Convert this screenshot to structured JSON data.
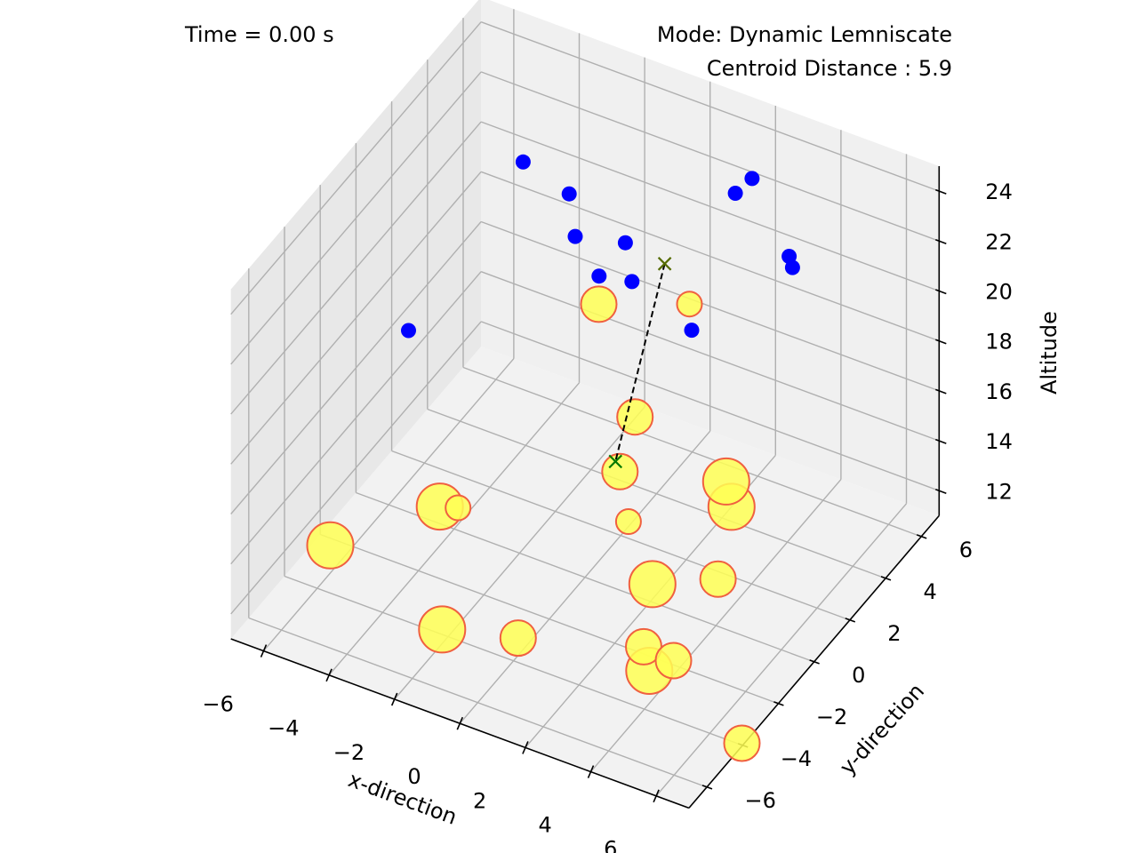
{
  "chart_data": {
    "type": "scatter3d",
    "time_label": "Time = 0.00 s",
    "mode_label": "Mode: Dynamic Lemniscate",
    "centroid_label": "Centroid Distance : 5.9",
    "xlabel": "x-direction",
    "ylabel": "y-direction",
    "zlabel": "Altitude",
    "xlim": [
      -7,
      7
    ],
    "ylim": [
      -7,
      7
    ],
    "zlim": [
      11,
      25
    ],
    "xticks": [
      -6,
      -4,
      -2,
      0,
      2,
      4,
      6
    ],
    "yticks": [
      -6,
      -4,
      -2,
      0,
      2,
      4,
      6
    ],
    "zticks": [
      12,
      14,
      16,
      18,
      20,
      22,
      24
    ],
    "xtick_labels": [
      "−6",
      "−4",
      "−2",
      "0",
      "2",
      "4",
      "6"
    ],
    "ytick_labels": [
      "−6",
      "−4",
      "−2",
      "0",
      "2",
      "4",
      "6"
    ],
    "ztick_labels": [
      "12",
      "14",
      "16",
      "18",
      "20",
      "22",
      "24"
    ],
    "colors": {
      "drone": "#0000ff",
      "target_fill": "#ffff55",
      "target_edge": "#f06040",
      "centroid_marker": "#007700",
      "centroid_link": "#000000",
      "pane": "#f2f2f2",
      "grid": "#b0b0b0"
    },
    "drones": [
      {
        "x": -4.06,
        "y": 3.97,
        "z": 22.35
      },
      {
        "x": -3.21,
        "y": 4.99,
        "z": 20.63
      },
      {
        "x": -3.94,
        "y": -2.66,
        "z": 21.2
      },
      {
        "x": -2.55,
        "y": 4.12,
        "z": 19.97
      },
      {
        "x": -1.46,
        "y": 4.93,
        "z": 19.57
      },
      {
        "x": -1.27,
        "y": 3.11,
        "z": 19.85
      },
      {
        "x": 1.81,
        "y": 5.1,
        "z": 22.99
      },
      {
        "x": -0.35,
        "y": 3.27,
        "z": 19.94
      },
      {
        "x": 3.09,
        "y": 3.69,
        "z": 25.38
      },
      {
        "x": 5.13,
        "y": 2.03,
        "z": 24.64
      },
      {
        "x": 5.67,
        "y": 1.23,
        "z": 25.12
      },
      {
        "x": 5.14,
        "y": -3.44,
        "z": 26.26
      }
    ],
    "targets": [
      {
        "x": -3.76,
        "y": -1.24,
        "z": 13.05,
        "size": "large"
      },
      {
        "x": -2.82,
        "y": -1.94,
        "z": 14.04,
        "size": "small"
      },
      {
        "x": -5.89,
        "y": -3.47,
        "z": 12.33,
        "size": "large"
      },
      {
        "x": -1.97,
        "y": -4.39,
        "z": 11.63,
        "size": "large"
      },
      {
        "x": 1.58,
        "y": -0.46,
        "z": 14.38,
        "size": "small"
      },
      {
        "x": -0.34,
        "y": -3.12,
        "z": 11.01,
        "size": "medium"
      },
      {
        "x": 1.67,
        "y": -1.1,
        "z": 16.96,
        "size": "medium"
      },
      {
        "x": 0.31,
        "y": 2.23,
        "z": 15.71,
        "size": "medium"
      },
      {
        "x": 1.72,
        "y": 0.62,
        "z": 11.04,
        "size": "large"
      },
      {
        "x": 2.91,
        "y": 2.87,
        "z": 12.83,
        "size": "large"
      },
      {
        "x": 3.88,
        "y": 0.34,
        "z": 12.52,
        "size": "medium"
      },
      {
        "x": 1.74,
        "y": 2.66,
        "z": 20.56,
        "size": "small"
      },
      {
        "x": 4.67,
        "y": -0.65,
        "z": 17.64,
        "size": "large"
      },
      {
        "x": 3.68,
        "y": -3.14,
        "z": 11.66,
        "size": "large"
      },
      {
        "x": 3.18,
        "y": -2.54,
        "z": 11.88,
        "size": "medium"
      },
      {
        "x": 4.54,
        "y": -3.36,
        "z": 12.67,
        "size": "medium"
      },
      {
        "x": 0.1,
        "y": 0.59,
        "z": 21.49,
        "size": "medium"
      },
      {
        "x": 6.84,
        "y": -3.74,
        "z": 10.79,
        "size": "medium"
      }
    ],
    "centroid_drones": {
      "x": 1.31,
      "y": 2.06,
      "z": 22.47
    },
    "centroid_targets": {
      "x": 1.75,
      "y": -1.5,
      "z": 17.74
    }
  }
}
